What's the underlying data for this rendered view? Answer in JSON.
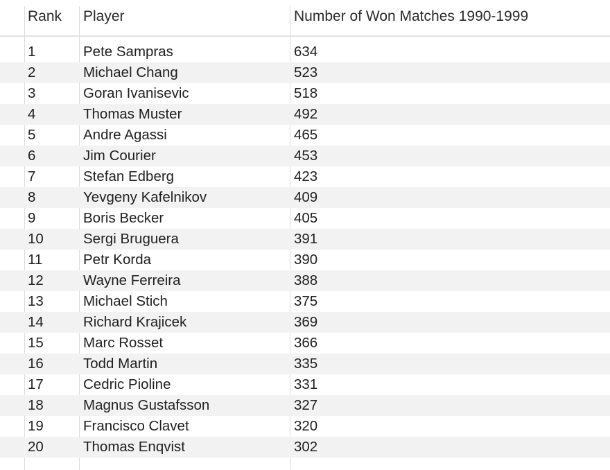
{
  "table": {
    "headers": {
      "rank": "Rank",
      "player": "Player",
      "won": "Number of Won Matches 1990-1999"
    },
    "rows": [
      {
        "rank": "1",
        "player": "Pete Sampras",
        "won": "634"
      },
      {
        "rank": "2",
        "player": "Michael Chang",
        "won": "523"
      },
      {
        "rank": "3",
        "player": "Goran Ivanisevic",
        "won": "518"
      },
      {
        "rank": "4",
        "player": "Thomas Muster",
        "won": "492"
      },
      {
        "rank": "5",
        "player": "Andre Agassi",
        "won": "465"
      },
      {
        "rank": "6",
        "player": "Jim Courier",
        "won": "453"
      },
      {
        "rank": "7",
        "player": "Stefan Edberg",
        "won": "423"
      },
      {
        "rank": "8",
        "player": "Yevgeny Kafelnikov",
        "won": "409"
      },
      {
        "rank": "9",
        "player": "Boris Becker",
        "won": "405"
      },
      {
        "rank": "10",
        "player": "Sergi Bruguera",
        "won": "391"
      },
      {
        "rank": "11",
        "player": "Petr Korda",
        "won": "390"
      },
      {
        "rank": "12",
        "player": "Wayne Ferreira",
        "won": "388"
      },
      {
        "rank": "13",
        "player": "Michael Stich",
        "won": "375"
      },
      {
        "rank": "14",
        "player": "Richard Krajicek",
        "won": "369"
      },
      {
        "rank": "15",
        "player": "Marc Rosset",
        "won": "366"
      },
      {
        "rank": "16",
        "player": "Todd Martin",
        "won": "335"
      },
      {
        "rank": "17",
        "player": "Cedric Pioline",
        "won": "331"
      },
      {
        "rank": "18",
        "player": "Magnus Gustafsson",
        "won": "327"
      },
      {
        "rank": "19",
        "player": "Francisco Clavet",
        "won": "320"
      },
      {
        "rank": "20",
        "player": "Thomas Enqvist",
        "won": "302"
      }
    ]
  },
  "colors": {
    "header_border": "#e3e3e3",
    "column_divider": "#dcdcdc",
    "alt_row": "#f2f2f2",
    "text": "#1f1f1f"
  }
}
